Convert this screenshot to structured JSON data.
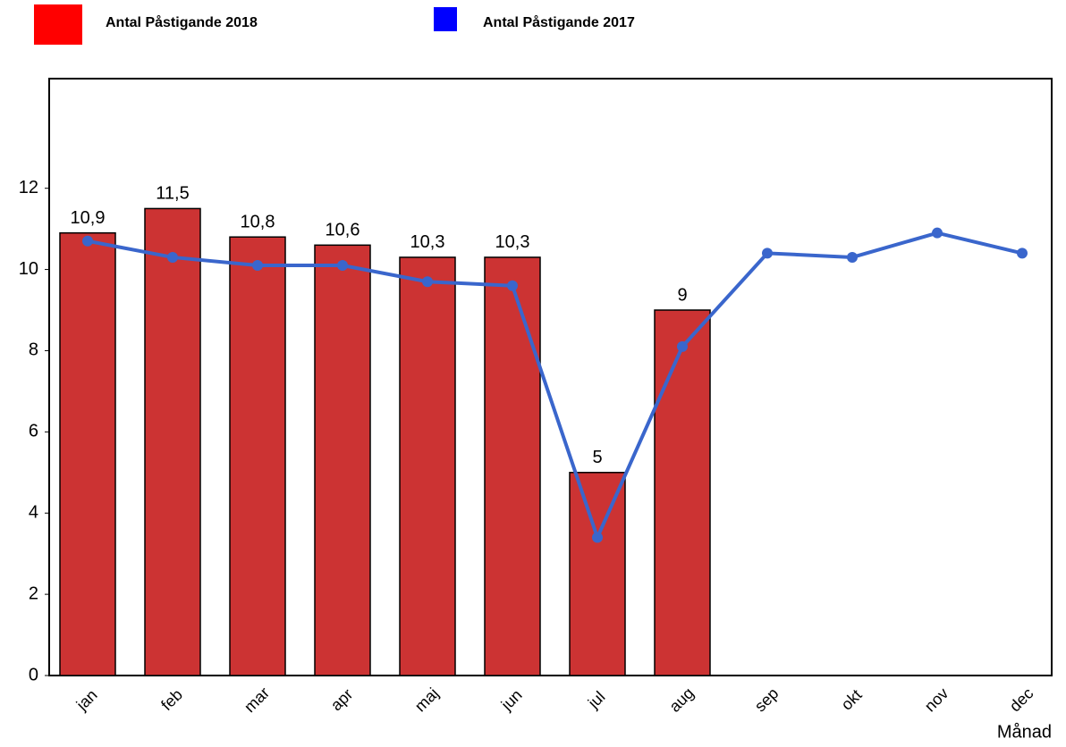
{
  "chart_data": {
    "type": "bar",
    "x_label": "Månad",
    "categories": [
      "jan",
      "feb",
      "mar",
      "apr",
      "maj",
      "jun",
      "jul",
      "aug",
      "sep",
      "okt",
      "nov",
      "dec"
    ],
    "series": [
      {
        "name": "Antal Påstigande 2018",
        "type": "bar",
        "color": "#cc3333",
        "legend_color": "#ff0000",
        "values": [
          10.9,
          11.5,
          10.8,
          10.6,
          10.3,
          10.3,
          5,
          9,
          null,
          null,
          null,
          null
        ],
        "value_labels": [
          "10,9",
          "11,5",
          "10,8",
          "10,6",
          "10,3",
          "10,3",
          "5",
          "9",
          null,
          null,
          null,
          null
        ]
      },
      {
        "name": "Antal Påstigande 2017",
        "type": "line",
        "color": "#3a66cc",
        "legend_color": "#0000ff",
        "values": [
          10.7,
          10.3,
          10.1,
          10.1,
          9.7,
          9.6,
          3.4,
          8.1,
          10.4,
          10.3,
          10.9,
          10.4
        ]
      }
    ],
    "ylim": [
      0,
      14.7
    ],
    "yticks": [
      0,
      2,
      4,
      6,
      8,
      10,
      12
    ],
    "grid": false
  }
}
